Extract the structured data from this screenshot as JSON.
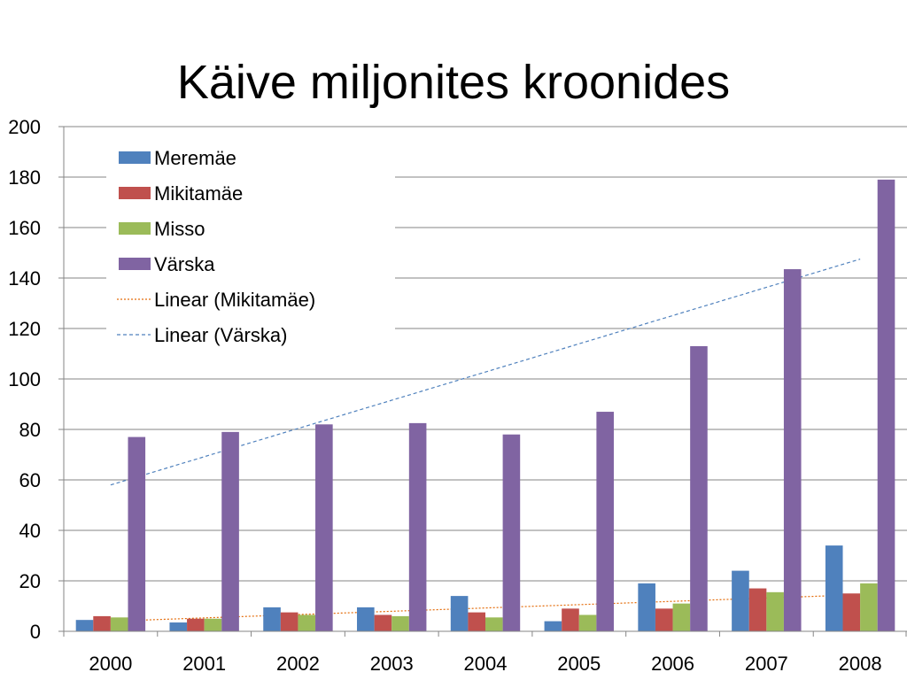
{
  "chart_data": {
    "type": "bar",
    "title": "Käive miljonites kroonides",
    "categories": [
      "2000",
      "2001",
      "2002",
      "2003",
      "2004",
      "2005",
      "2006",
      "2007",
      "2008"
    ],
    "ylim": [
      0,
      200
    ],
    "yticks": [
      "0",
      "20",
      "40",
      "60",
      "80",
      "100",
      "120",
      "140",
      "160",
      "180",
      "200"
    ],
    "grid": true,
    "legend_position": "top-left",
    "series": [
      {
        "name": "Meremäe",
        "color": "#4F81BD",
        "values": [
          4.5,
          3.5,
          9.5,
          9.5,
          14,
          4,
          19,
          24,
          34
        ]
      },
      {
        "name": "Mikitamäe",
        "color": "#C0504D",
        "values": [
          6,
          5,
          7.5,
          6.5,
          7.5,
          9,
          9,
          17,
          15
        ]
      },
      {
        "name": "Misso",
        "color": "#9BBB59",
        "values": [
          5.5,
          5,
          6.5,
          6,
          5.5,
          6.5,
          11,
          15.5,
          19
        ]
      },
      {
        "name": "Värska",
        "color": "#8064A2",
        "values": [
          77,
          79,
          82,
          82.5,
          78,
          87,
          113,
          143.5,
          179
        ]
      }
    ],
    "trendlines": [
      {
        "name": "Linear (Mikitamäe)",
        "color": "#E46C0A",
        "start": 4,
        "end": 14.5
      },
      {
        "name": "Linear (Värska)",
        "color": "#4F81BD",
        "start": 58,
        "end": 147.5
      }
    ]
  }
}
